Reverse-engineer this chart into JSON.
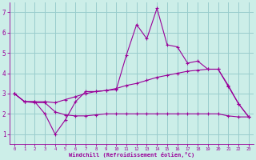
{
  "xlabel": "Windchill (Refroidissement éolien,°C)",
  "background_color": "#cceee8",
  "grid_color": "#99cccc",
  "line_color": "#990099",
  "x": [
    0,
    1,
    2,
    3,
    4,
    5,
    6,
    7,
    8,
    9,
    10,
    11,
    12,
    13,
    14,
    15,
    16,
    17,
    18,
    19,
    20,
    21,
    22,
    23
  ],
  "series1": [
    3.0,
    2.6,
    2.6,
    2.0,
    1.0,
    1.7,
    2.6,
    3.1,
    3.1,
    3.15,
    3.2,
    4.9,
    6.4,
    5.7,
    7.2,
    5.4,
    5.3,
    4.5,
    4.6,
    4.2,
    4.2,
    3.4,
    2.5,
    1.85
  ],
  "series2": [
    3.0,
    2.6,
    2.6,
    2.6,
    2.55,
    2.7,
    2.85,
    3.0,
    3.1,
    3.15,
    3.25,
    3.4,
    3.5,
    3.65,
    3.8,
    3.9,
    4.0,
    4.1,
    4.15,
    4.2,
    4.2,
    3.35,
    2.5,
    1.85
  ],
  "series3": [
    3.0,
    2.6,
    2.55,
    2.55,
    2.1,
    1.95,
    1.9,
    1.9,
    1.95,
    2.0,
    2.0,
    2.0,
    2.0,
    2.0,
    2.0,
    2.0,
    2.0,
    2.0,
    2.0,
    2.0,
    2.0,
    1.9,
    1.85,
    1.85
  ],
  "ylim": [
    0.5,
    7.5
  ],
  "xlim": [
    -0.5,
    23.5
  ],
  "yticks": [
    1,
    2,
    3,
    4,
    5,
    6,
    7
  ],
  "xticks": [
    0,
    1,
    2,
    3,
    4,
    5,
    6,
    7,
    8,
    9,
    10,
    11,
    12,
    13,
    14,
    15,
    16,
    17,
    18,
    19,
    20,
    21,
    22,
    23
  ]
}
